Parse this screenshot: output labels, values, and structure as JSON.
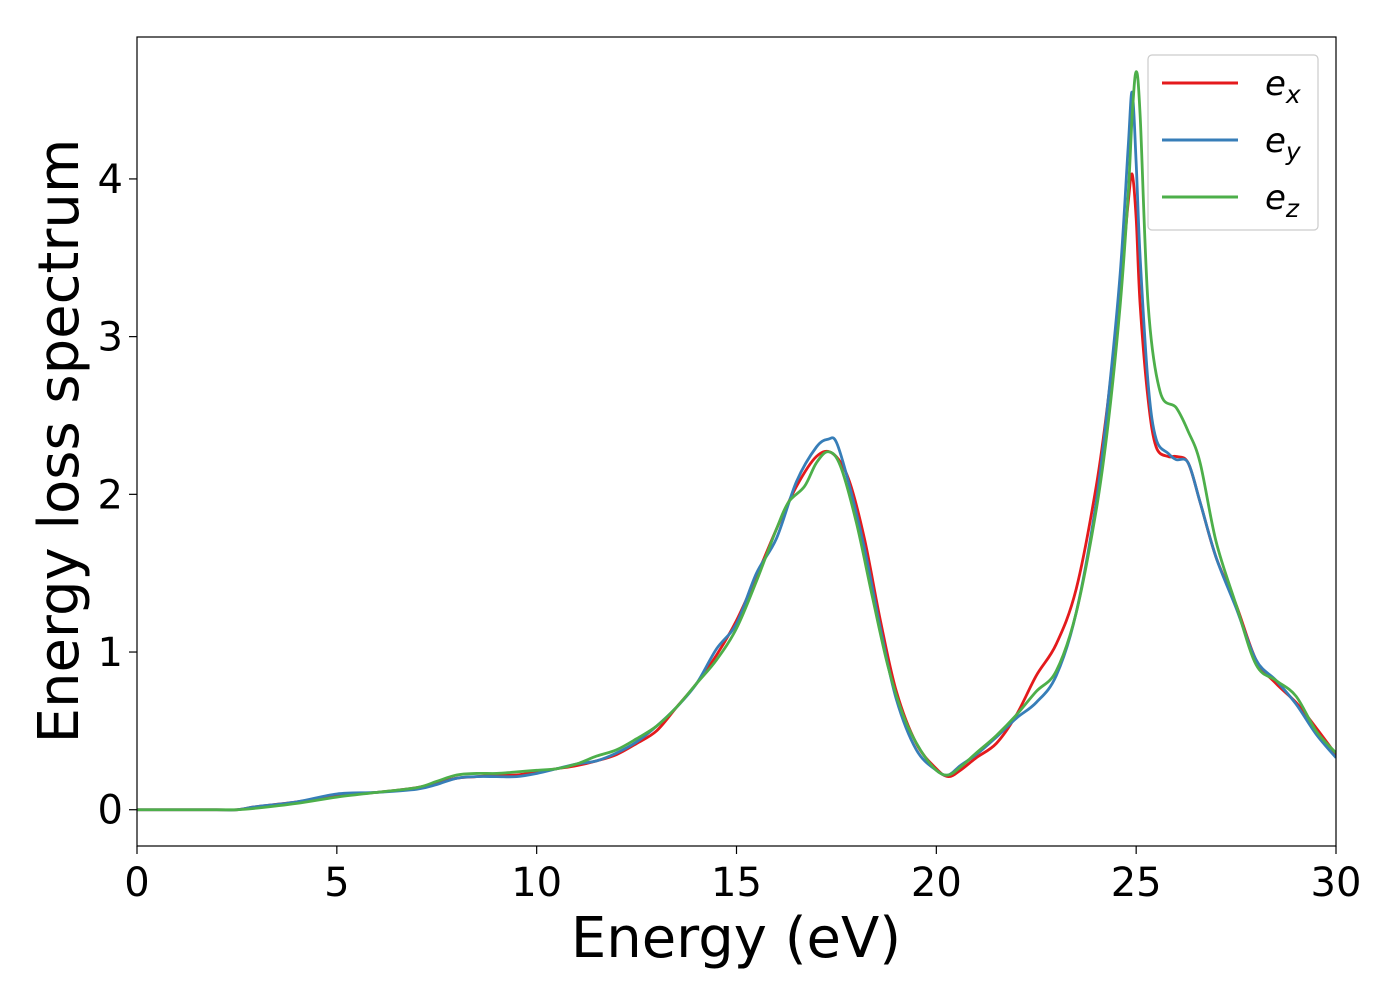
{
  "chart_data": {
    "type": "line",
    "xlabel": "Energy (eV)",
    "ylabel": "Energy loss spectrum",
    "xlim": [
      0,
      30
    ],
    "ylim": [
      -0.23,
      4.9
    ],
    "xticks": [
      0,
      5,
      10,
      15,
      20,
      25,
      30
    ],
    "yticks": [
      0,
      1,
      2,
      3,
      4
    ],
    "xtick_labels": [
      "0",
      "5",
      "10",
      "15",
      "20",
      "25",
      "30"
    ],
    "ytick_labels": [
      "0",
      "1",
      "2",
      "3",
      "4"
    ],
    "grid": false,
    "legend_position": "top-right",
    "series": [
      {
        "name": "e",
        "subscript": "x",
        "color": "#e41a1c",
        "x": [
          0,
          1,
          2,
          2.5,
          3,
          4,
          5,
          6,
          7,
          7.5,
          8,
          8.5,
          9,
          9.5,
          10,
          10.5,
          11,
          11.5,
          12,
          12.5,
          13,
          13.5,
          14,
          14.5,
          15,
          15.5,
          16,
          16.5,
          17,
          17.4,
          17.8,
          18.2,
          18.6,
          19,
          19.5,
          20,
          20.3,
          20.6,
          21,
          21.5,
          22,
          22.5,
          23,
          23.5,
          24,
          24.3,
          24.6,
          24.8,
          24.9,
          25,
          25.1,
          25.3,
          25.5,
          25.8,
          26,
          26.3,
          26.6,
          27,
          27.5,
          28,
          28.5,
          29,
          29.5,
          30
        ],
        "y": [
          0,
          0,
          0,
          0,
          0.02,
          0.05,
          0.09,
          0.11,
          0.14,
          0.17,
          0.2,
          0.21,
          0.22,
          0.22,
          0.24,
          0.26,
          0.28,
          0.31,
          0.35,
          0.42,
          0.5,
          0.65,
          0.8,
          0.98,
          1.2,
          1.48,
          1.78,
          2.05,
          2.24,
          2.26,
          2.1,
          1.72,
          1.2,
          0.75,
          0.42,
          0.26,
          0.21,
          0.25,
          0.33,
          0.42,
          0.6,
          0.85,
          1.05,
          1.4,
          2.05,
          2.6,
          3.3,
          3.85,
          4.03,
          3.75,
          3.2,
          2.6,
          2.3,
          2.24,
          2.24,
          2.2,
          1.95,
          1.6,
          1.3,
          0.95,
          0.8,
          0.68,
          0.52,
          0.35
        ]
      },
      {
        "name": "e",
        "subscript": "y",
        "color": "#377eb8",
        "x": [
          0,
          1,
          2,
          2.5,
          3,
          4,
          5,
          6,
          7,
          7.5,
          8,
          8.5,
          9,
          9.5,
          10,
          10.5,
          11,
          11.5,
          12,
          12.5,
          13,
          13.5,
          14,
          14.5,
          15,
          15.5,
          16,
          16.5,
          17,
          17.3,
          17.5,
          17.8,
          18.2,
          18.6,
          19,
          19.5,
          20,
          20.3,
          20.6,
          21,
          21.5,
          22,
          22.5,
          23,
          23.5,
          24,
          24.3,
          24.6,
          24.8,
          24.9,
          25,
          25.1,
          25.3,
          25.5,
          25.8,
          26,
          26.3,
          26.6,
          27,
          27.5,
          28,
          28.5,
          29,
          29.5,
          30
        ],
        "y": [
          0,
          0,
          0,
          0,
          0.02,
          0.05,
          0.1,
          0.11,
          0.13,
          0.16,
          0.2,
          0.21,
          0.21,
          0.21,
          0.23,
          0.26,
          0.29,
          0.31,
          0.36,
          0.43,
          0.53,
          0.65,
          0.8,
          1.02,
          1.18,
          1.5,
          1.72,
          2.08,
          2.3,
          2.35,
          2.33,
          2.08,
          1.66,
          1.15,
          0.7,
          0.38,
          0.25,
          0.22,
          0.28,
          0.35,
          0.46,
          0.58,
          0.68,
          0.85,
          1.25,
          1.95,
          2.6,
          3.4,
          4.2,
          4.55,
          4.1,
          3.5,
          2.7,
          2.35,
          2.26,
          2.22,
          2.2,
          1.95,
          1.6,
          1.28,
          0.95,
          0.82,
          0.67,
          0.48,
          0.33
        ]
      },
      {
        "name": "e",
        "subscript": "z",
        "color": "#4daf4a",
        "x": [
          0,
          1,
          2,
          2.5,
          3,
          4,
          5,
          6,
          7,
          7.5,
          8,
          8.5,
          9,
          9.5,
          10,
          10.5,
          11,
          11.5,
          12,
          12.5,
          13,
          13.5,
          14,
          14.5,
          15,
          15.5,
          16,
          16.3,
          16.7,
          17,
          17.3,
          17.6,
          18,
          18.4,
          18.8,
          19.2,
          19.6,
          20,
          20.3,
          20.6,
          21,
          21.5,
          22,
          22.5,
          23,
          23.5,
          24,
          24.3,
          24.6,
          24.8,
          24.9,
          25,
          25.1,
          25.3,
          25.6,
          26,
          26.3,
          26.6,
          27,
          27.5,
          28,
          28.5,
          29,
          29.5,
          30
        ],
        "y": [
          0,
          0,
          0,
          0,
          0.01,
          0.04,
          0.08,
          0.11,
          0.14,
          0.18,
          0.22,
          0.23,
          0.23,
          0.24,
          0.25,
          0.26,
          0.29,
          0.34,
          0.38,
          0.45,
          0.53,
          0.65,
          0.8,
          0.95,
          1.15,
          1.45,
          1.78,
          1.95,
          2.05,
          2.2,
          2.27,
          2.18,
          1.82,
          1.35,
          0.9,
          0.58,
          0.38,
          0.25,
          0.22,
          0.27,
          0.36,
          0.47,
          0.6,
          0.75,
          0.88,
          1.25,
          1.9,
          2.45,
          3.2,
          3.9,
          4.4,
          4.68,
          4.4,
          3.2,
          2.65,
          2.55,
          2.4,
          2.2,
          1.7,
          1.3,
          0.92,
          0.82,
          0.72,
          0.5,
          0.36
        ]
      }
    ]
  }
}
